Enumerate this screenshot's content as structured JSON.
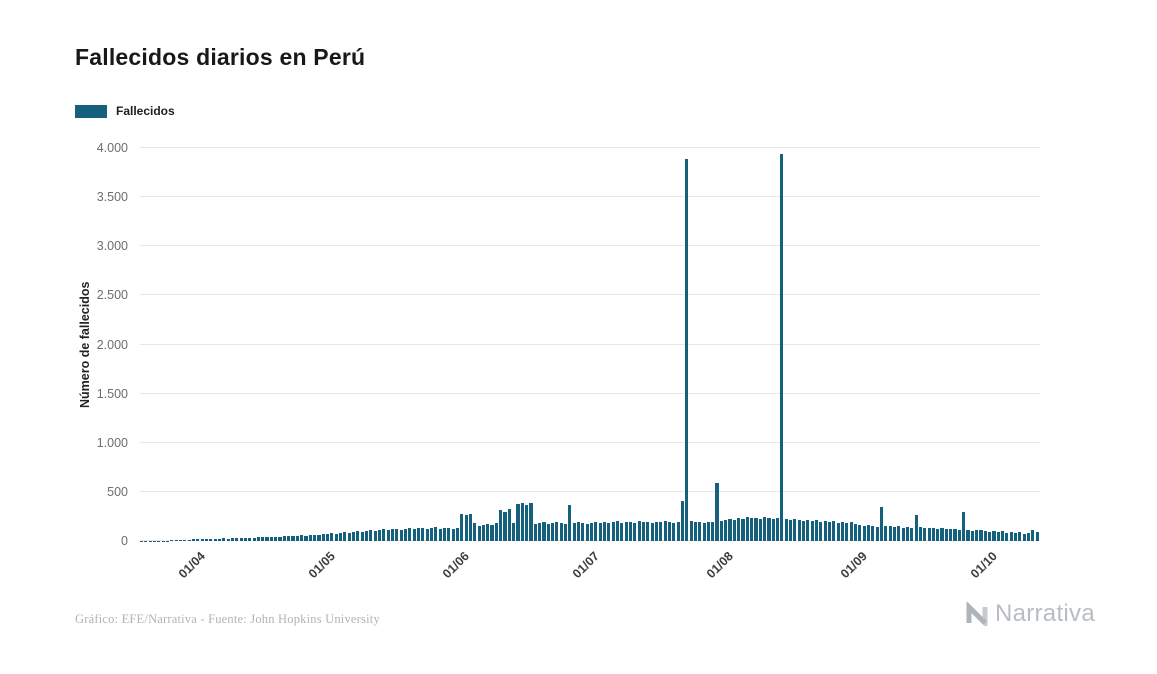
{
  "header": {
    "title": "Fallecidos diarios en Perú"
  },
  "footer": {
    "credit": "Gráfico: EFE/Narrativa - Fuente: John Hopkins University",
    "brand": "Narrativa"
  },
  "colors": {
    "bar": "#15607c",
    "grid": "#e7e7e7",
    "brand_gray": "#b7bdc2"
  },
  "chart_data": {
    "type": "bar",
    "title": "Fallecidos diarios en Perú",
    "xlabel": "",
    "ylabel": "Número de fallecidos",
    "legend": [
      "Fallecidos"
    ],
    "legend_position": "top-left",
    "grid": "horizontal",
    "bar_color": "#15607c",
    "ylim": [
      0,
      4000
    ],
    "y_ticks": [
      {
        "value": 0,
        "label": "0"
      },
      {
        "value": 500,
        "label": "500"
      },
      {
        "value": 1000,
        "label": "1.000"
      },
      {
        "value": 1500,
        "label": "1.500"
      },
      {
        "value": 2000,
        "label": "2.000"
      },
      {
        "value": 2500,
        "label": "2.500"
      },
      {
        "value": 3000,
        "label": "3.000"
      },
      {
        "value": 3500,
        "label": "3.500"
      },
      {
        "value": 4000,
        "label": "4.000"
      }
    ],
    "x_ticks": [
      {
        "index": 13,
        "label": "01/04"
      },
      {
        "index": 43,
        "label": "01/05"
      },
      {
        "index": 74,
        "label": "01/06"
      },
      {
        "index": 104,
        "label": "01/07"
      },
      {
        "index": 135,
        "label": "01/08"
      },
      {
        "index": 166,
        "label": "01/09"
      },
      {
        "index": 196,
        "label": "01/10"
      }
    ],
    "values": [
      1,
      2,
      2,
      3,
      3,
      4,
      5,
      6,
      8,
      9,
      11,
      13,
      16,
      18,
      16,
      20,
      22,
      19,
      24,
      26,
      23,
      28,
      30,
      27,
      32,
      35,
      31,
      38,
      40,
      36,
      42,
      45,
      41,
      48,
      52,
      47,
      55,
      58,
      54,
      62,
      66,
      60,
      70,
      75,
      80,
      72,
      85,
      90,
      82,
      95,
      100,
      92,
      105,
      110,
      98,
      115,
      120,
      108,
      118,
      125,
      112,
      122,
      130,
      118,
      128,
      135,
      122,
      132,
      140,
      126,
      136,
      130,
      124,
      128,
      270,
      265,
      272,
      180,
      150,
      165,
      175,
      160,
      185,
      320,
      300,
      330,
      185,
      380,
      390,
      370,
      385,
      175,
      180,
      190,
      170,
      185,
      195,
      180,
      175,
      370,
      185,
      190,
      180,
      175,
      185,
      190,
      180,
      195,
      185,
      190,
      200,
      185,
      195,
      190,
      185,
      200,
      190,
      195,
      185,
      190,
      195,
      200,
      190,
      185,
      195,
      410,
      3887,
      200,
      195,
      190,
      185,
      195,
      190,
      589,
      200,
      210,
      220,
      215,
      230,
      225,
      240,
      230,
      235,
      225,
      240,
      230,
      225,
      235,
      3935,
      220,
      215,
      225,
      210,
      205,
      215,
      200,
      210,
      195,
      205,
      190,
      200,
      185,
      195,
      180,
      190,
      175,
      165,
      155,
      160,
      150,
      145,
      350,
      155,
      148,
      140,
      150,
      135,
      145,
      130,
      265,
      140,
      135,
      128,
      132,
      125,
      130,
      120,
      118,
      122,
      115,
      300,
      110,
      105,
      112,
      108,
      100,
      95,
      100,
      90,
      105,
      85,
      95,
      80,
      90,
      75,
      85,
      110,
      95
    ]
  }
}
